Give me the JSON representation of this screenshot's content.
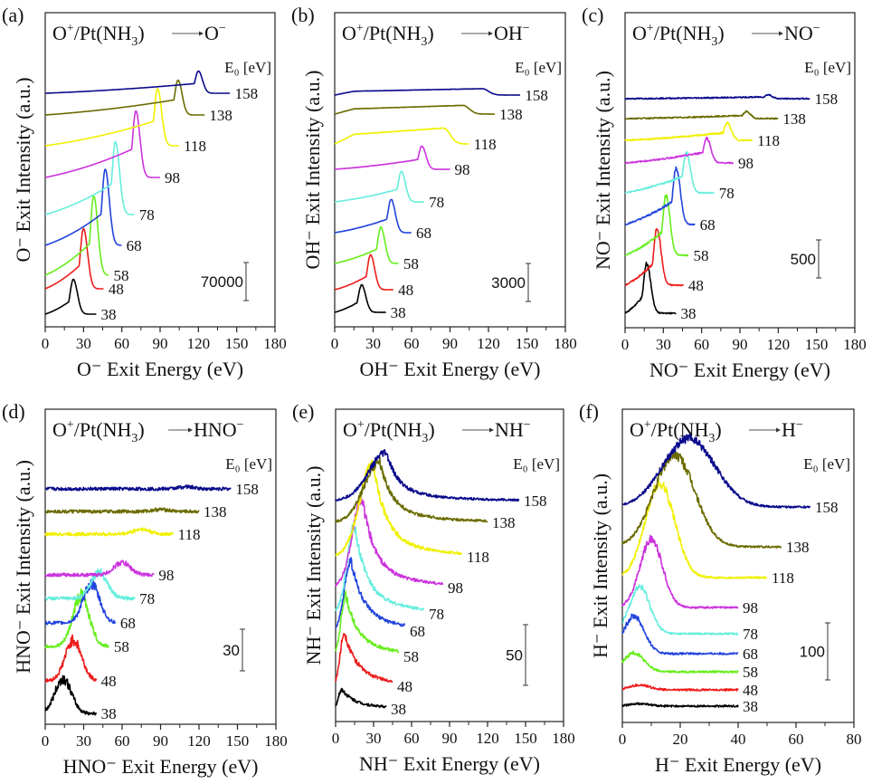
{
  "chart_data": [
    {
      "type": "line",
      "panel": "(a)",
      "reaction": {
        "projectile": "O",
        "projectile_charge": "+",
        "target": "Pt(NH",
        "target_sub": "3",
        "target_close": ")",
        "product": "O",
        "product_charge": "−"
      },
      "xlabel": "O⁻ Exit Energy (eV)",
      "ylabel": "O⁻ Exit Intensity (a.u.)",
      "xlim": [
        0,
        180
      ],
      "xticks": [
        0,
        30,
        60,
        90,
        120,
        150,
        180
      ],
      "legend_title": "E₀ [eV]",
      "scale_bar": "70000",
      "noise": 0.0,
      "series": [
        {
          "name": "38",
          "E0": 38,
          "x_end": 40,
          "peak_x": 22,
          "peak_h": 0.55,
          "shape": "sharp",
          "color": "#000000"
        },
        {
          "name": "48",
          "E0": 48,
          "x_end": 46,
          "peak_x": 30,
          "peak_h": 0.95,
          "shape": "sharp",
          "color": "#ee1c1c"
        },
        {
          "name": "58",
          "E0": 58,
          "x_end": 50,
          "peak_x": 38,
          "peak_h": 1.25,
          "shape": "sharp",
          "color": "#66ee1c"
        },
        {
          "name": "68",
          "E0": 68,
          "x_end": 60,
          "peak_x": 47,
          "peak_h": 1.2,
          "shape": "sharp",
          "color": "#2244dd"
        },
        {
          "name": "78",
          "E0": 78,
          "x_end": 70,
          "peak_x": 55,
          "peak_h": 1.15,
          "shape": "sharp",
          "color": "#66eedd"
        },
        {
          "name": "98",
          "E0": 98,
          "x_end": 90,
          "peak_x": 71,
          "peak_h": 1.05,
          "shape": "sharp",
          "color": "#cc33dd"
        },
        {
          "name": "118",
          "E0": 118,
          "x_end": 105,
          "peak_x": 88,
          "peak_h": 0.9,
          "shape": "sharp",
          "color": "#f0f000"
        },
        {
          "name": "138",
          "E0": 138,
          "x_end": 125,
          "peak_x": 104,
          "peak_h": 0.55,
          "shape": "sharp",
          "color": "#6b6b00"
        },
        {
          "name": "158",
          "E0": 158,
          "x_end": 145,
          "peak_x": 120,
          "peak_h": 0.35,
          "shape": "sharp",
          "color": "#0a0a8c"
        }
      ]
    },
    {
      "type": "line",
      "panel": "(b)",
      "reaction": {
        "projectile": "O",
        "projectile_charge": "+",
        "target": "Pt(NH",
        "target_sub": "3",
        "target_close": ")",
        "product": "OH",
        "product_charge": "−"
      },
      "xlabel": "OH⁻ Exit Energy (eV)",
      "ylabel": "OH⁻ Exit Intensity (a.u.)",
      "xlim": [
        0,
        180
      ],
      "xticks": [
        0,
        30,
        60,
        90,
        120,
        150,
        180
      ],
      "legend_title": "E₀ [eV]",
      "scale_bar": "3000",
      "noise": 0.01,
      "series": [
        {
          "name": "38",
          "E0": 38,
          "x_end": 40,
          "peak_x": 21,
          "peak_h": 0.95,
          "shape": "sharp",
          "color": "#000000"
        },
        {
          "name": "48",
          "E0": 48,
          "x_end": 46,
          "peak_x": 28,
          "peak_h": 1.2,
          "shape": "sharp",
          "color": "#ee1c1c"
        },
        {
          "name": "58",
          "E0": 58,
          "x_end": 50,
          "peak_x": 36,
          "peak_h": 1.25,
          "shape": "sharp",
          "color": "#66ee1c"
        },
        {
          "name": "68",
          "E0": 68,
          "x_end": 60,
          "peak_x": 44,
          "peak_h": 1.15,
          "shape": "sharp",
          "color": "#2244dd"
        },
        {
          "name": "78",
          "E0": 78,
          "x_end": 70,
          "peak_x": 52,
          "peak_h": 1.05,
          "shape": "sharp",
          "color": "#66eedd"
        },
        {
          "name": "98",
          "E0": 98,
          "x_end": 90,
          "peak_x": 68,
          "peak_h": 0.8,
          "shape": "sharp",
          "color": "#cc33dd"
        },
        {
          "name": "118",
          "E0": 118,
          "x_end": 105,
          "peak_x": 85,
          "peak_h": 0.55,
          "shape": "plateau",
          "color": "#f0f000"
        },
        {
          "name": "138",
          "E0": 138,
          "x_end": 125,
          "peak_x": 100,
          "peak_h": 0.3,
          "shape": "plateau",
          "color": "#6b6b00"
        },
        {
          "name": "158",
          "E0": 158,
          "x_end": 145,
          "peak_x": 115,
          "peak_h": 0.22,
          "shape": "plateau",
          "color": "#0a0a8c"
        }
      ]
    },
    {
      "type": "line",
      "panel": "(c)",
      "reaction": {
        "projectile": "O",
        "projectile_charge": "+",
        "target": "Pt(NH",
        "target_sub": "3",
        "target_close": ")",
        "product": "NO",
        "product_charge": "−"
      },
      "xlabel": "NO⁻ Exit Energy (eV)",
      "ylabel": "NO⁻ Exit Intensity (a.u.)",
      "xlim": [
        0,
        180
      ],
      "xticks": [
        0,
        30,
        60,
        90,
        120,
        150,
        180
      ],
      "legend_title": "E₀ [eV]",
      "scale_bar": "500",
      "noise": 0.03,
      "series": [
        {
          "name": "38",
          "E0": 38,
          "x_end": 40,
          "peak_x": 17,
          "peak_h": 1.0,
          "shape": "sharp",
          "color": "#000000"
        },
        {
          "name": "48",
          "E0": 48,
          "x_end": 46,
          "peak_x": 25,
          "peak_h": 1.15,
          "shape": "sharp",
          "color": "#ee1c1c"
        },
        {
          "name": "58",
          "E0": 58,
          "x_end": 50,
          "peak_x": 32,
          "peak_h": 1.2,
          "shape": "sharp",
          "color": "#66ee1c"
        },
        {
          "name": "68",
          "E0": 68,
          "x_end": 55,
          "peak_x": 40,
          "peak_h": 1.15,
          "shape": "sharp",
          "color": "#2244dd"
        },
        {
          "name": "78",
          "E0": 78,
          "x_end": 70,
          "peak_x": 48,
          "peak_h": 0.8,
          "shape": "sharp",
          "color": "#66eedd"
        },
        {
          "name": "98",
          "E0": 98,
          "x_end": 85,
          "peak_x": 64,
          "peak_h": 0.5,
          "shape": "sharp",
          "color": "#cc33dd"
        },
        {
          "name": "118",
          "E0": 118,
          "x_end": 100,
          "peak_x": 80,
          "peak_h": 0.35,
          "shape": "sharp",
          "color": "#f0f000"
        },
        {
          "name": "138",
          "E0": 138,
          "x_end": 120,
          "peak_x": 95,
          "peak_h": 0.14,
          "shape": "sharp",
          "color": "#6b6b00"
        },
        {
          "name": "158",
          "E0": 158,
          "x_end": 145,
          "peak_x": 112,
          "peak_h": 0.08,
          "shape": "sharp",
          "color": "#0a0a8c"
        }
      ]
    },
    {
      "type": "line",
      "panel": "(d)",
      "reaction": {
        "projectile": "O",
        "projectile_charge": "+",
        "target": "Pt(NH",
        "target_sub": "3",
        "target_close": ")",
        "product": "HNO",
        "product_charge": "−"
      },
      "xlabel": "HNO⁻ Exit Energy (eV)",
      "ylabel": "HNO⁻ Exit Intensity (a.u.)",
      "xlim": [
        0,
        180
      ],
      "xticks": [
        0,
        30,
        60,
        90,
        120,
        150,
        180
      ],
      "legend_title": "E₀ [eV]",
      "scale_bar": "30",
      "noise": 0.1,
      "series": [
        {
          "name": "38",
          "E0": 38,
          "x_end": 40,
          "peak_x": 14,
          "peak_h": 0.85,
          "shape": "broad",
          "color": "#000000"
        },
        {
          "name": "48",
          "E0": 48,
          "x_end": 40,
          "peak_x": 22,
          "peak_h": 1.0,
          "shape": "broad",
          "color": "#ee1c1c"
        },
        {
          "name": "58",
          "E0": 58,
          "x_end": 50,
          "peak_x": 28,
          "peak_h": 1.25,
          "shape": "broad",
          "color": "#66ee1c"
        },
        {
          "name": "68",
          "E0": 68,
          "x_end": 55,
          "peak_x": 36,
          "peak_h": 0.95,
          "shape": "broad",
          "color": "#2244dd"
        },
        {
          "name": "78",
          "E0": 78,
          "x_end": 70,
          "peak_x": 42,
          "peak_h": 0.65,
          "shape": "broad",
          "color": "#66eedd"
        },
        {
          "name": "98",
          "E0": 98,
          "x_end": 85,
          "peak_x": 60,
          "peak_h": 0.3,
          "shape": "broad",
          "color": "#cc33dd"
        },
        {
          "name": "118",
          "E0": 118,
          "x_end": 100,
          "peak_x": 75,
          "peak_h": 0.12,
          "shape": "broad",
          "color": "#f0f000"
        },
        {
          "name": "138",
          "E0": 138,
          "x_end": 120,
          "peak_x": 90,
          "peak_h": 0.05,
          "shape": "broad",
          "color": "#6b6b00"
        },
        {
          "name": "158",
          "E0": 158,
          "x_end": 145,
          "peak_x": 110,
          "peak_h": 0.05,
          "shape": "broad",
          "color": "#0a0a8c"
        }
      ]
    },
    {
      "type": "line",
      "panel": "(e)",
      "reaction": {
        "projectile": "O",
        "projectile_charge": "+",
        "target": "Pt(NH",
        "target_sub": "3",
        "target_close": ")",
        "product": "NH",
        "product_charge": "−"
      },
      "xlabel": "NH⁻ Exit Energy (eV)",
      "ylabel": "NH⁻ Exit Intensity (a.u.)",
      "xlim": [
        0,
        180
      ],
      "xticks": [
        0,
        30,
        60,
        90,
        120,
        150,
        180
      ],
      "legend_title": "E₀ [eV]",
      "scale_bar": "50",
      "noise": 0.06,
      "series": [
        {
          "name": "38",
          "E0": 38,
          "x_end": 40,
          "peak_x": 5,
          "peak_h": 0.45,
          "shape": "tail",
          "color": "#000000"
        },
        {
          "name": "48",
          "E0": 48,
          "x_end": 45,
          "peak_x": 7,
          "peak_h": 1.25,
          "shape": "tail",
          "color": "#ee1c1c"
        },
        {
          "name": "58",
          "E0": 58,
          "x_end": 50,
          "peak_x": 8,
          "peak_h": 1.4,
          "shape": "tail",
          "color": "#66ee1c"
        },
        {
          "name": "68",
          "E0": 68,
          "x_end": 55,
          "peak_x": 12,
          "peak_h": 1.65,
          "shape": "tail",
          "color": "#2244dd"
        },
        {
          "name": "78",
          "E0": 78,
          "x_end": 70,
          "peak_x": 15,
          "peak_h": 2.0,
          "shape": "tail",
          "color": "#66eedd"
        },
        {
          "name": "98",
          "E0": 98,
          "x_end": 85,
          "peak_x": 21,
          "peak_h": 2.05,
          "shape": "tail",
          "color": "#cc33dd"
        },
        {
          "name": "118",
          "E0": 118,
          "x_end": 100,
          "peak_x": 30,
          "peak_h": 2.15,
          "shape": "tail",
          "color": "#f0f000"
        },
        {
          "name": "138",
          "E0": 138,
          "x_end": 120,
          "peak_x": 35,
          "peak_h": 1.4,
          "shape": "tail",
          "color": "#6b6b00"
        },
        {
          "name": "158",
          "E0": 158,
          "x_end": 145,
          "peak_x": 40,
          "peak_h": 1.1,
          "shape": "tail",
          "color": "#0a0a8c"
        }
      ]
    },
    {
      "type": "line",
      "panel": "(f)",
      "reaction": {
        "projectile": "O",
        "projectile_charge": "+",
        "target": "Pt(NH",
        "target_sub": "3",
        "target_close": ")",
        "product": "H",
        "product_charge": "−"
      },
      "xlabel": "H⁻ Exit Energy (eV)",
      "ylabel": "H⁻ Exit Intensity (a.u.)",
      "xlim": [
        0,
        80
      ],
      "xticks": [
        0,
        20,
        40,
        60,
        80
      ],
      "legend_title": "E₀ [eV]",
      "scale_bar": "100",
      "noise": 0.05,
      "series": [
        {
          "name": "38",
          "E0": 38,
          "x_end": 40,
          "peak_x": 6,
          "peak_h": 0.05,
          "shape": "broad",
          "color": "#000000"
        },
        {
          "name": "48",
          "E0": 48,
          "x_end": 40,
          "peak_x": 6,
          "peak_h": 0.1,
          "shape": "broad",
          "color": "#ee1c1c"
        },
        {
          "name": "58",
          "E0": 58,
          "x_end": 40,
          "peak_x": 4,
          "peak_h": 0.4,
          "shape": "broad",
          "color": "#66ee1c"
        },
        {
          "name": "68",
          "E0": 68,
          "x_end": 40,
          "peak_x": 4,
          "peak_h": 0.8,
          "shape": "broad",
          "color": "#2244dd"
        },
        {
          "name": "78",
          "E0": 78,
          "x_end": 40,
          "peak_x": 6,
          "peak_h": 1.0,
          "shape": "broad",
          "color": "#66eedd"
        },
        {
          "name": "98",
          "E0": 98,
          "x_end": 40,
          "peak_x": 10,
          "peak_h": 1.45,
          "shape": "broad",
          "color": "#cc33dd"
        },
        {
          "name": "118",
          "E0": 118,
          "x_end": 50,
          "peak_x": 13,
          "peak_h": 2.0,
          "shape": "broad",
          "color": "#f0f000"
        },
        {
          "name": "138",
          "E0": 138,
          "x_end": 55,
          "peak_x": 18,
          "peak_h": 1.95,
          "shape": "broad",
          "color": "#6b6b00"
        },
        {
          "name": "158",
          "E0": 158,
          "x_end": 65,
          "peak_x": 23,
          "peak_h": 1.45,
          "shape": "broad",
          "color": "#0a0a8c"
        }
      ]
    }
  ]
}
